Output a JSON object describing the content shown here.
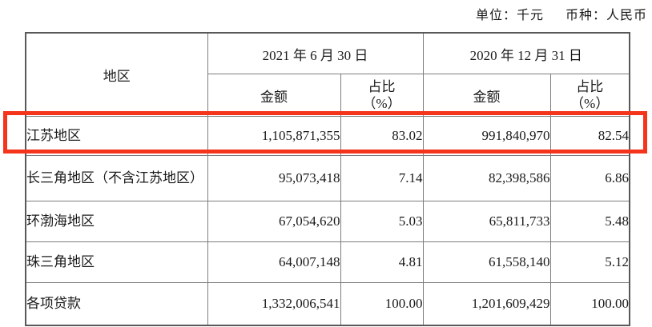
{
  "page": {
    "unit_label": "单位：千元",
    "currency_label": "币种：人民币"
  },
  "table": {
    "region_header": "地区",
    "groups": [
      {
        "date_label": "2021 年 6 月 30 日",
        "amount_label": "金额",
        "ratio_label": "占比\n（%）"
      },
      {
        "date_label": "2020 年 12 月 31 日",
        "amount_label": "金额",
        "ratio_label": "占比\n（%）"
      }
    ],
    "rows": [
      {
        "region": "江苏地区",
        "amount_a": "1,105,871,355",
        "ratio_a": "83.02",
        "amount_b": "991,840,970",
        "ratio_b": "82.54"
      },
      {
        "region": "长三角地区（不含江苏地区）",
        "amount_a": "95,073,418",
        "ratio_a": "7.14",
        "amount_b": "82,398,586",
        "ratio_b": "6.86"
      },
      {
        "region": "环渤海地区",
        "amount_a": "67,054,620",
        "ratio_a": "5.03",
        "amount_b": "65,811,733",
        "ratio_b": "5.48"
      },
      {
        "region": "珠三角地区",
        "amount_a": "64,007,148",
        "ratio_a": "4.81",
        "amount_b": "61,558,140",
        "ratio_b": "5.12"
      },
      {
        "region": "各项贷款",
        "amount_a": "1,332,006,541",
        "ratio_a": "100.00",
        "amount_b": "1,201,609,429",
        "ratio_b": "100.00"
      }
    ],
    "highlighted_row_index": 0
  },
  "colors": {
    "highlight_border": "#f5341c",
    "grid_line": "#7d7d7d",
    "outer_border": "#595959",
    "text": "#1a1a1a",
    "background": "#ffffff"
  }
}
